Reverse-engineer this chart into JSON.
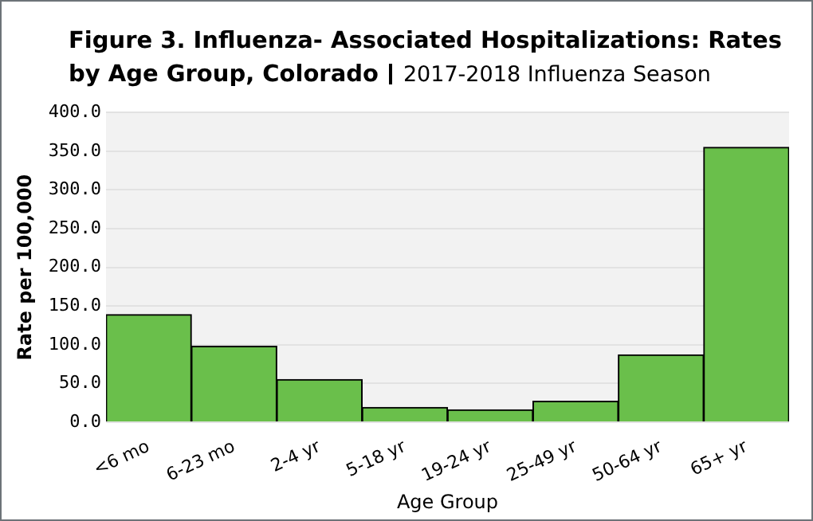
{
  "chart_data": {
    "type": "bar",
    "title": "Figure 3.  Influenza- Associated Hospitalizations: Rates by Age Group, Colorado",
    "subtitle": "2017-2018 Influenza Season",
    "xlabel": "Age Group",
    "ylabel": "Rate per 100,000",
    "categories": [
      "<6 mo",
      "6-23 mo",
      "2-4 yr",
      "5-18 yr",
      "19-24 yr",
      "25-49 yr",
      "50-64 yr",
      "65+ yr"
    ],
    "values": [
      139,
      98,
      55,
      19,
      16,
      27,
      87,
      355
    ],
    "color": "#6abf4b",
    "ylim": [
      0,
      400
    ],
    "yticks": [
      {
        "value": 0,
        "label": "0.0"
      },
      {
        "value": 50,
        "label": "50.0"
      },
      {
        "value": 100,
        "label": "100.0"
      },
      {
        "value": 150,
        "label": "150.0"
      },
      {
        "value": 200,
        "label": "200.0"
      },
      {
        "value": 250,
        "label": "250.0"
      },
      {
        "value": 300,
        "label": "300.0"
      },
      {
        "value": 350,
        "label": "350.0"
      },
      {
        "value": 400,
        "label": "400.0"
      }
    ],
    "grid": "y",
    "legend": false
  }
}
